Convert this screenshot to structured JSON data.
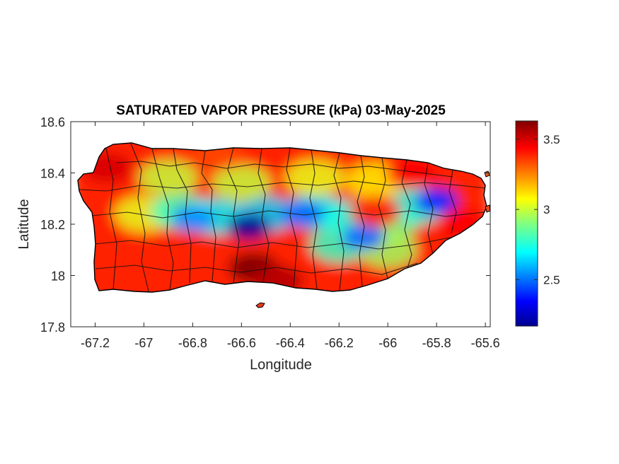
{
  "title": "SATURATED VAPOR PRESSURE (kPa) 03-May-2025",
  "xlabel": "Longitude",
  "ylabel": "Latitude",
  "map": {
    "region": "Puerto Rico",
    "xlim": [
      -67.3,
      -65.58
    ],
    "ylim": [
      17.8,
      18.6
    ],
    "xticks": [
      "-67.2",
      "-67",
      "-66.8",
      "-66.6",
      "-66.4",
      "-66.2",
      "-66",
      "-65.8",
      "-65.6"
    ],
    "xtick_values": [
      -67.2,
      -67.0,
      -66.8,
      -66.6,
      -66.4,
      -66.2,
      -66.0,
      -65.8,
      -65.6
    ],
    "yticks": [
      "17.8",
      "18",
      "18.2",
      "18.4",
      "18.6"
    ],
    "ytick_values": [
      17.8,
      18.0,
      18.2,
      18.4,
      18.6
    ],
    "colormap": "jet",
    "grid": false,
    "municipal_boundaries": true
  },
  "colorbar": {
    "range": [
      2.17,
      3.63
    ],
    "ticks": [
      "2.5",
      "3",
      "3.5"
    ],
    "tick_values": [
      2.5,
      3.0,
      3.5
    ],
    "position": "right"
  },
  "field_features": [
    {
      "lon": -66.57,
      "lat": 18.19,
      "value": 2.2
    },
    {
      "lon": -66.35,
      "lat": 18.24,
      "value": 2.5
    },
    {
      "lon": -66.8,
      "lat": 18.22,
      "value": 2.55
    },
    {
      "lon": -65.8,
      "lat": 18.29,
      "value": 2.4
    },
    {
      "lon": -66.1,
      "lat": 18.15,
      "value": 2.5
    },
    {
      "lon": -66.55,
      "lat": 18.03,
      "value": 3.63
    },
    {
      "lon": -66.45,
      "lat": 17.98,
      "value": 3.55
    },
    {
      "lon": -67.15,
      "lat": 18.42,
      "value": 3.5
    },
    {
      "lon": -67.1,
      "lat": 18.1,
      "value": 3.4
    },
    {
      "lon": -66.05,
      "lat": 18.25,
      "value": 3.4
    },
    {
      "lon": -66.7,
      "lat": 18.47,
      "value": 3.35
    },
    {
      "lon": -65.9,
      "lat": 18.4,
      "value": 3.45
    },
    {
      "lon": -65.7,
      "lat": 18.2,
      "value": 3.45
    }
  ]
}
